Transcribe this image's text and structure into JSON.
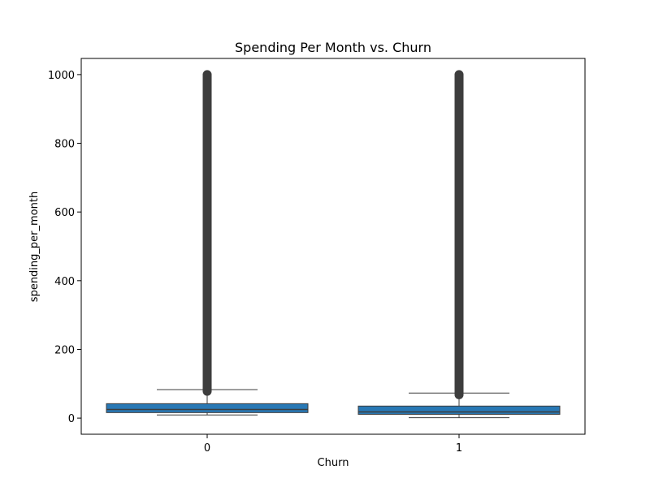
{
  "chart_data": {
    "type": "box",
    "title": "Spending Per Month vs. Churn",
    "xlabel": "Churn",
    "ylabel": "spending_per_month",
    "categories": [
      "0",
      "1"
    ],
    "ylim": [
      -47,
      1047
    ],
    "yticks": [
      0,
      200,
      400,
      600,
      800,
      1000
    ],
    "ytick_labels": [
      "0",
      "200",
      "400",
      "600",
      "800",
      "1000"
    ],
    "grid": false,
    "box_color": "#2878b5",
    "line_color": "#3d3d3d",
    "outlier_color": "#3d3d3d",
    "boxes": [
      {
        "category": "0",
        "whisker_low": 9,
        "q1": 16,
        "median": 25,
        "q3": 42,
        "whisker_high": 83,
        "outlier_min": 78,
        "outlier_max": 1000
      },
      {
        "category": "1",
        "whisker_low": 1,
        "q1": 11,
        "median": 18,
        "q3": 35,
        "whisker_high": 73,
        "outlier_min": 68,
        "outlier_max": 1000
      }
    ]
  }
}
